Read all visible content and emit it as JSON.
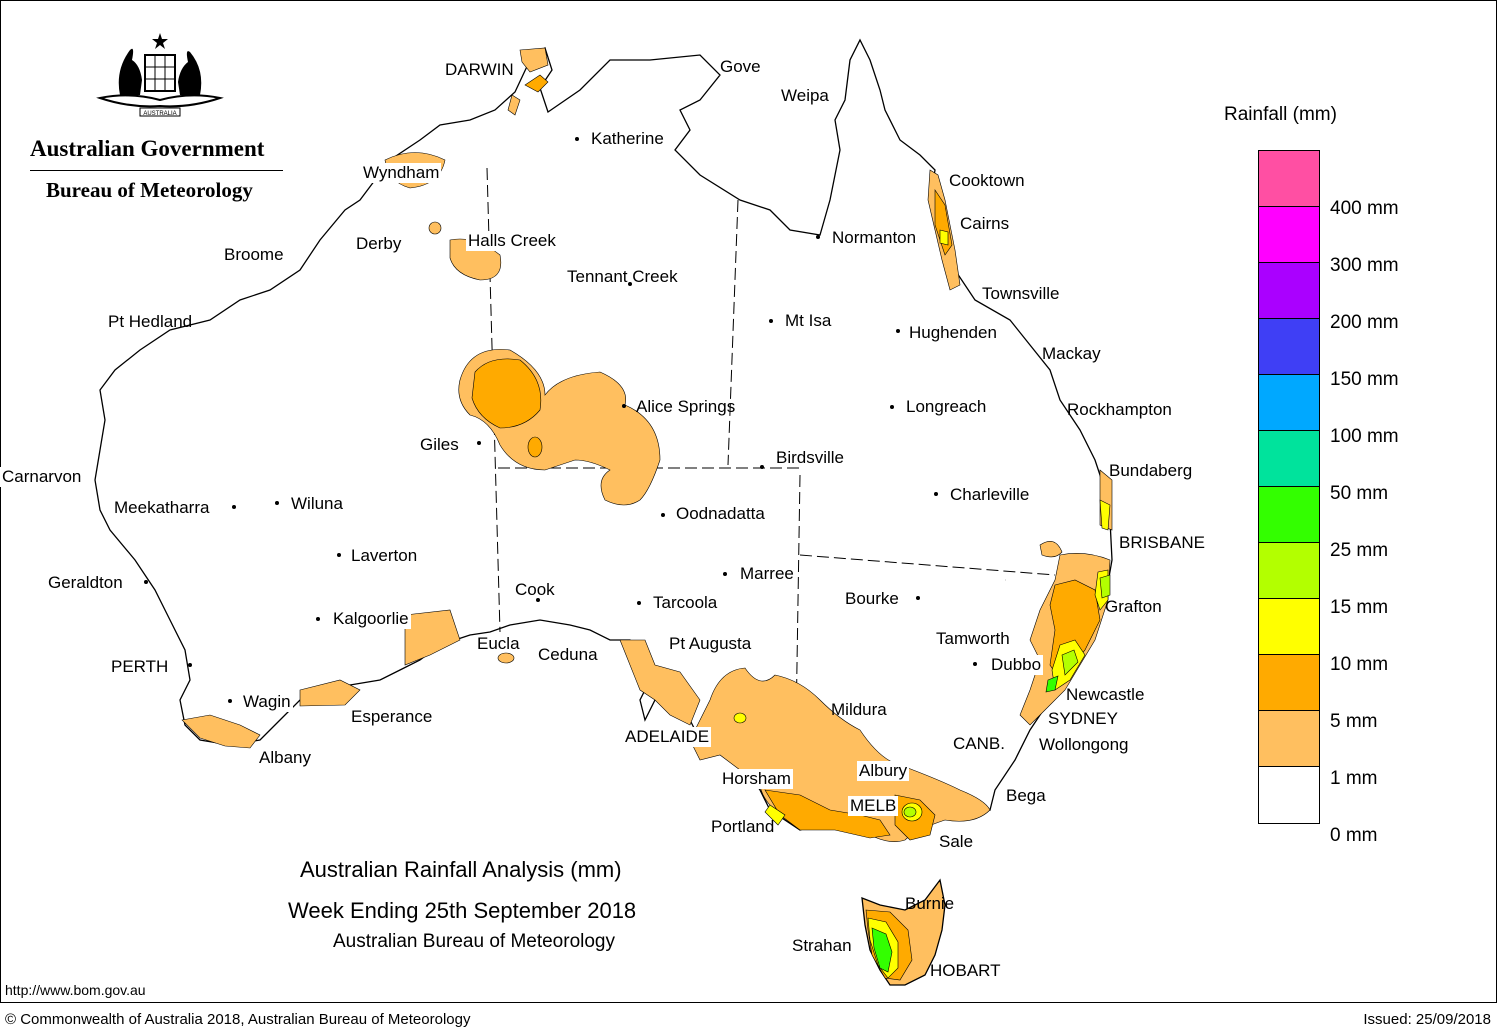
{
  "header": {
    "government": "Australian Government",
    "bureau": "Bureau of Meteorology",
    "crest_label": "AUSTRALIA"
  },
  "map": {
    "title_line1": "Australian Rainfall Analysis (mm)",
    "title_line2": "Week Ending 25th September 2018",
    "title_line3": "Australian Bureau of Meteorology",
    "places": [
      "DARWIN",
      "Gove",
      "Weipa",
      "Katherine",
      "Wyndham",
      "Cooktown",
      "Cairns",
      "Derby",
      "Halls Creek",
      "Broome",
      "Normanton",
      "Tennant Creek",
      "Townsville",
      "Pt Hedland",
      "Mt Isa",
      "Hughenden",
      "Mackay",
      "Alice Springs",
      "Longreach",
      "Rockhampton",
      "Giles",
      "Birdsville",
      "Bundaberg",
      "Carnarvon",
      "Charleville",
      "Meekatharra",
      "Wiluna",
      "Oodnadatta",
      "BRISBANE",
      "Laverton",
      "Marree",
      "Geraldton",
      "Cook",
      "Tarcoola",
      "Bourke",
      "Grafton",
      "Kalgoorlie",
      "Tamworth",
      "Eucla",
      "Pt Augusta",
      "Ceduna",
      "PERTH",
      "Dubbo",
      "Newcastle",
      "Wagin",
      "Mildura",
      "SYDNEY",
      "Esperance",
      "ADELAIDE",
      "CANB.",
      "Wollongong",
      "Albany",
      "Albury",
      "Horsham",
      "Bega",
      "MELB",
      "Portland",
      "Sale",
      "Burnie",
      "Strahan",
      "HOBART"
    ]
  },
  "legend": {
    "title": "Rainfall (mm)",
    "swatches": [
      {
        "color": "#ff4fa3"
      },
      {
        "color": "#ff00ff"
      },
      {
        "color": "#aa00ff"
      },
      {
        "color": "#3f3ff5"
      },
      {
        "color": "#00a8ff"
      },
      {
        "color": "#00e39c"
      },
      {
        "color": "#33ff00"
      },
      {
        "color": "#b3ff00"
      },
      {
        "color": "#ffff00"
      },
      {
        "color": "#ffaa00"
      },
      {
        "color": "#ffbf5f"
      },
      {
        "color": "#ffffff"
      }
    ],
    "labels": [
      "400 mm",
      "300 mm",
      "200 mm",
      "150 mm",
      "100 mm",
      "50 mm",
      "25 mm",
      "15 mm",
      "10 mm",
      "5 mm",
      "1 mm",
      "0 mm"
    ]
  },
  "colors": {
    "rain_1mm": "#ffbf5f",
    "rain_5mm": "#ffaa00",
    "rain_10mm": "#ffff00",
    "rain_15mm": "#b3ff00",
    "rain_25mm": "#33ff00"
  },
  "footer": {
    "url": "http://www.bom.gov.au",
    "copyright": "© Commonwealth of Australia 2018, Australian Bureau of Meteorology",
    "issued": "Issued: 25/09/2018"
  }
}
